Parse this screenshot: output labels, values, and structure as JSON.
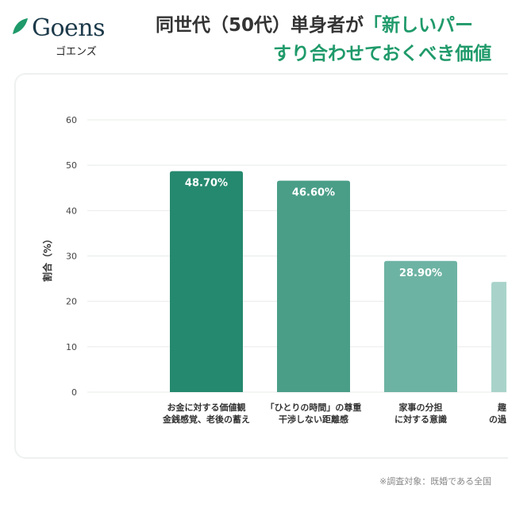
{
  "logo": {
    "text": "Goens",
    "kana": "ゴエンズ"
  },
  "title": {
    "line1_a": "同世代（50代）単身者が",
    "line1_b": "「新しいパー",
    "line2": "すり合わせておくべき価値"
  },
  "footer": "※調査対象：既婚である全国",
  "colors": {
    "accent": "#1f9a6a",
    "bars": [
      "#25896f",
      "#4a9e88",
      "#6db3a3",
      "#a9d3ca"
    ]
  },
  "chart_data": {
    "type": "bar",
    "ylabel": "割合（%）",
    "ylim": [
      0,
      60
    ],
    "yticks": [
      0,
      10,
      20,
      30,
      40,
      50,
      60
    ],
    "grid": true,
    "categories": [
      [
        "お金に対する価値観",
        "金銭感覚、老後の蓄え"
      ],
      [
        "「ひとりの時間」の尊重",
        "干渉しない距離感"
      ],
      [
        "家事の分担",
        "に対する意識"
      ],
      [
        "趣",
        "の過"
      ]
    ],
    "values": [
      48.7,
      46.6,
      28.9,
      24.3
    ],
    "data_labels": [
      "48.70%",
      "46.60%",
      "28.90%",
      ""
    ]
  }
}
